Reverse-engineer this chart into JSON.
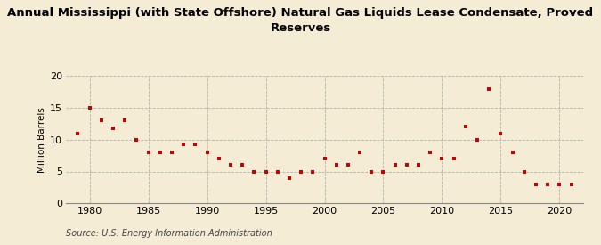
{
  "title": "Annual Mississippi (with State Offshore) Natural Gas Liquids Lease Condensate, Proved\nReserves",
  "ylabel": "Million Barrels",
  "source": "Source: U.S. Energy Information Administration",
  "background_color": "#f5ecd5",
  "plot_bg_color": "#f5ecd5",
  "marker_color": "#cc0000",
  "grid_color": "#aaaaaa",
  "years": [
    1979,
    1980,
    1981,
    1982,
    1983,
    1984,
    1985,
    1986,
    1987,
    1988,
    1989,
    1990,
    1991,
    1992,
    1993,
    1994,
    1995,
    1996,
    1997,
    1998,
    1999,
    2000,
    2001,
    2002,
    2003,
    2004,
    2005,
    2006,
    2007,
    2008,
    2009,
    2010,
    2011,
    2012,
    2013,
    2014,
    2015,
    2016,
    2017,
    2018,
    2019,
    2020,
    2021
  ],
  "values": [
    11.0,
    15.0,
    13.0,
    11.8,
    13.0,
    10.0,
    8.0,
    8.0,
    8.0,
    9.2,
    9.2,
    8.0,
    7.0,
    6.0,
    6.0,
    5.0,
    5.0,
    5.0,
    4.0,
    5.0,
    5.0,
    7.0,
    6.0,
    6.0,
    8.0,
    5.0,
    5.0,
    6.0,
    6.0,
    6.0,
    8.0,
    7.0,
    7.0,
    12.0,
    10.0,
    18.0,
    11.0,
    8.0,
    5.0,
    3.0,
    3.0,
    3.0,
    3.0
  ],
  "ylim": [
    0,
    20
  ],
  "yticks": [
    0,
    5,
    10,
    15,
    20
  ],
  "xlim": [
    1978,
    2022
  ],
  "xticks": [
    1980,
    1985,
    1990,
    1995,
    2000,
    2005,
    2010,
    2015,
    2020
  ],
  "title_fontsize": 9.5,
  "ylabel_fontsize": 7.5,
  "tick_fontsize": 8,
  "source_fontsize": 7
}
